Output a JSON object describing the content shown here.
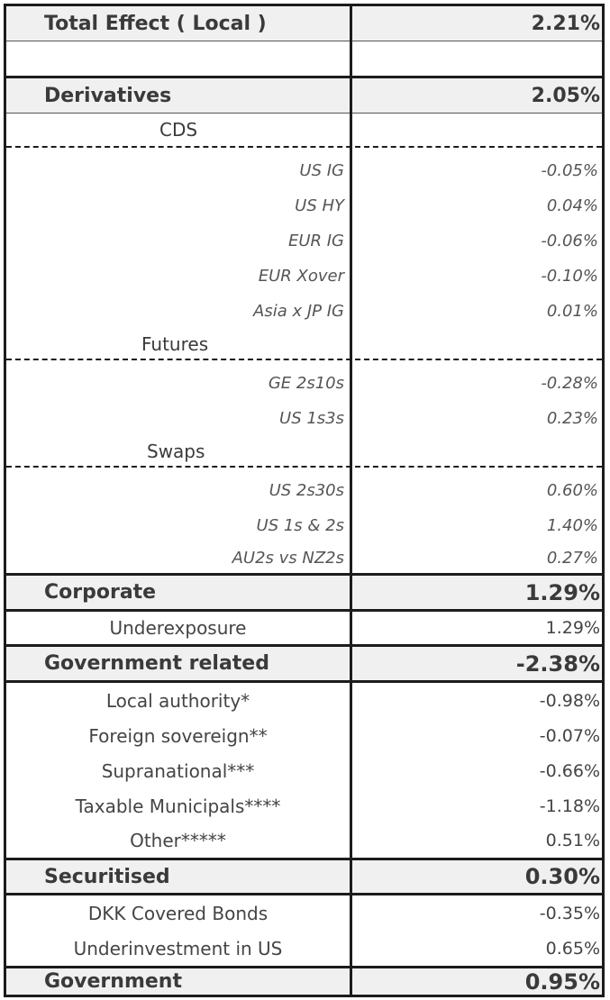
{
  "header": {
    "label": "Total Effect ( Local )",
    "value": "2.21%"
  },
  "derivatives": {
    "label": "Derivatives",
    "value": "2.05%",
    "cds": {
      "label": "CDS",
      "items": [
        {
          "label": "US IG",
          "value": "-0.05%"
        },
        {
          "label": "US HY",
          "value": "0.04%"
        },
        {
          "label": "EUR IG",
          "value": "-0.06%"
        },
        {
          "label": "EUR Xover",
          "value": "-0.10%"
        },
        {
          "label": "Asia x JP IG",
          "value": "0.01%"
        }
      ]
    },
    "futures": {
      "label": "Futures",
      "items": [
        {
          "label": "GE 2s10s",
          "value": "-0.28%"
        },
        {
          "label": "US 1s3s",
          "value": "0.23%"
        }
      ]
    },
    "swaps": {
      "label": "Swaps",
      "items": [
        {
          "label": "US 2s30s",
          "value": "0.60%"
        },
        {
          "label": "US 1s & 2s",
          "value": "1.40%"
        },
        {
          "label": "AU2s vs NZ2s",
          "value": "0.27%"
        }
      ]
    }
  },
  "corporate": {
    "label": "Corporate",
    "value": "1.29%",
    "items": [
      {
        "label": "Underexposure",
        "value": "1.29%"
      }
    ]
  },
  "government_related": {
    "label": "Government related",
    "value": "-2.38%",
    "items": [
      {
        "label": "Local authority*",
        "value": "-0.98%"
      },
      {
        "label": "Foreign sovereign**",
        "value": "-0.07%"
      },
      {
        "label": "Supranational***",
        "value": "-0.66%"
      },
      {
        "label": "Taxable Municipals****",
        "value": "-1.18%"
      },
      {
        "label": "Other*****",
        "value": "0.51%"
      }
    ]
  },
  "securitised": {
    "label": "Securitised",
    "value": "0.30%",
    "items": [
      {
        "label": "DKK Covered Bonds",
        "value": "-0.35%"
      },
      {
        "label": "Underinvestment in US",
        "value": "0.65%"
      }
    ]
  },
  "government": {
    "label": "Government",
    "value": "0.95%"
  }
}
